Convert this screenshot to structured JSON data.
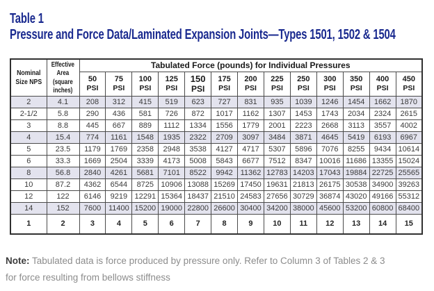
{
  "title": {
    "line1": "Table 1",
    "line2": "Pressure and Force Data/Laminated Expansion Joints—Types 1501, 1502 & 1504"
  },
  "table": {
    "nps_header": "Nominal Size NPS",
    "area_header": "Effective Area (square inches)",
    "span_header": "Tabulated Force (pounds) for Individual Pressures",
    "psi_columns": [
      {
        "value": "50",
        "unit": "PSI",
        "emphasis": false
      },
      {
        "value": "75",
        "unit": "PSI",
        "emphasis": false
      },
      {
        "value": "100",
        "unit": "PSI",
        "emphasis": false
      },
      {
        "value": "125",
        "unit": "PSI",
        "emphasis": false
      },
      {
        "value": "150",
        "unit": "PSI",
        "emphasis": true
      },
      {
        "value": "175",
        "unit": "PSI",
        "emphasis": false
      },
      {
        "value": "200",
        "unit": "PSI",
        "emphasis": false
      },
      {
        "value": "225",
        "unit": "PSI",
        "emphasis": false
      },
      {
        "value": "250",
        "unit": "PSI",
        "emphasis": false
      },
      {
        "value": "300",
        "unit": "PSI",
        "emphasis": false
      },
      {
        "value": "350",
        "unit": "PSI",
        "emphasis": false
      },
      {
        "value": "400",
        "unit": "PSI",
        "emphasis": false
      },
      {
        "value": "450",
        "unit": "PSI",
        "emphasis": false
      }
    ],
    "rows": [
      {
        "nps": "2",
        "area": "4.1",
        "forces": [
          "208",
          "312",
          "415",
          "519",
          "623",
          "727",
          "831",
          "935",
          "1039",
          "1246",
          "1454",
          "1662",
          "1870"
        ]
      },
      {
        "nps": "2-1/2",
        "area": "5.8",
        "forces": [
          "290",
          "436",
          "581",
          "726",
          "872",
          "1017",
          "1162",
          "1307",
          "1453",
          "1743",
          "2034",
          "2324",
          "2615"
        ]
      },
      {
        "nps": "3",
        "area": "8.8",
        "forces": [
          "445",
          "667",
          "889",
          "1112",
          "1334",
          "1556",
          "1779",
          "2001",
          "2223",
          "2668",
          "3113",
          "3557",
          "4002"
        ]
      },
      {
        "nps": "4",
        "area": "15.4",
        "forces": [
          "774",
          "1161",
          "1548",
          "1935",
          "2322",
          "2709",
          "3097",
          "3484",
          "3871",
          "4645",
          "5419",
          "6193",
          "6967"
        ]
      },
      {
        "nps": "5",
        "area": "23.5",
        "forces": [
          "1179",
          "1769",
          "2358",
          "2948",
          "3538",
          "4127",
          "4717",
          "5307",
          "5896",
          "7076",
          "8255",
          "9434",
          "10614"
        ]
      },
      {
        "nps": "6",
        "area": "33.3",
        "forces": [
          "1669",
          "2504",
          "3339",
          "4173",
          "5008",
          "5843",
          "6677",
          "7512",
          "8347",
          "10016",
          "11686",
          "13355",
          "15024"
        ]
      },
      {
        "nps": "8",
        "area": "56.8",
        "forces": [
          "2840",
          "4261",
          "5681",
          "7101",
          "8522",
          "9942",
          "11362",
          "12783",
          "14203",
          "17043",
          "19884",
          "22725",
          "25565"
        ]
      },
      {
        "nps": "10",
        "area": "87.2",
        "forces": [
          "4362",
          "6544",
          "8725",
          "10906",
          "13088",
          "15269",
          "17450",
          "19631",
          "21813",
          "26175",
          "30538",
          "34900",
          "39263"
        ]
      },
      {
        "nps": "12",
        "area": "122",
        "forces": [
          "6146",
          "9219",
          "12291",
          "15364",
          "18437",
          "21510",
          "24583",
          "27656",
          "30729",
          "36874",
          "43020",
          "49166",
          "55312"
        ]
      },
      {
        "nps": "14",
        "area": "152",
        "forces": [
          "7600",
          "11400",
          "15200",
          "19000",
          "22800",
          "26600",
          "30400",
          "34200",
          "38000",
          "45600",
          "53200",
          "60800",
          "68400"
        ]
      }
    ],
    "column_numbers": [
      "1",
      "2",
      "3",
      "4",
      "5",
      "6",
      "7",
      "8",
      "9",
      "10",
      "11",
      "12",
      "13",
      "14",
      "15"
    ]
  },
  "note": {
    "label": "Note:",
    "line1": "Tabulated data is force produced by pressure only. Refer to Column 3 of Tables 2 & 3",
    "line2": "for force resulting from bellows stiffness"
  },
  "colors": {
    "title_navy": "#1a2a8f",
    "shaded_row": "#e3e3ee",
    "grid_line": "#4a4a4a",
    "note_gray": "#8c8c8c"
  }
}
